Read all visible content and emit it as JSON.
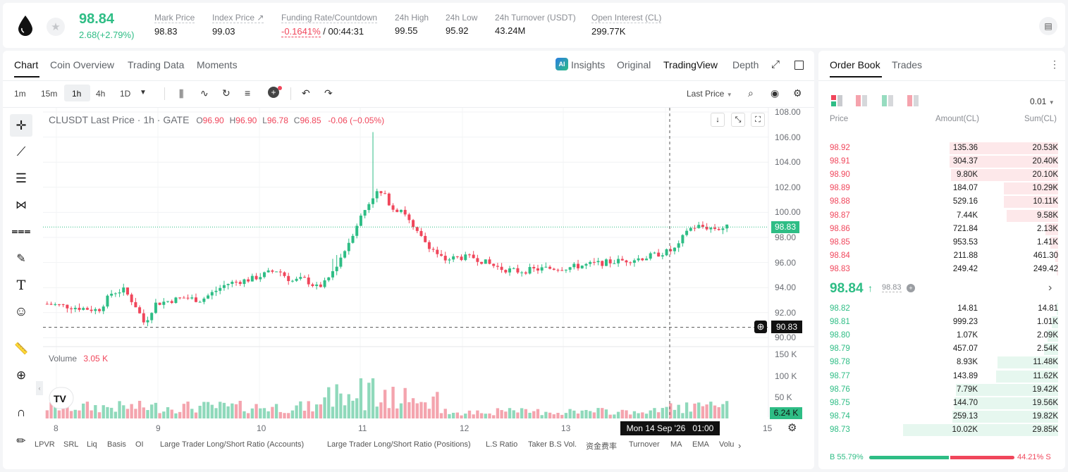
{
  "ticker": {
    "last_price": "98.84",
    "change": "2.68(+2.79%)",
    "stats": [
      {
        "label": "Mark Price",
        "value": "98.83"
      },
      {
        "label": "Index Price ↗",
        "value": "99.03"
      },
      {
        "label": "Funding Rate/Countdown",
        "value": "-0.1641%",
        "value2": " / 00:44:31"
      },
      {
        "label": "24h High",
        "value": "99.55"
      },
      {
        "label": "24h Low",
        "value": "95.92"
      },
      {
        "label": "24h Turnover (USDT)",
        "value": "43.24M"
      },
      {
        "label": "Open Interest (CL)",
        "value": "299.77K"
      }
    ]
  },
  "chart_tabs": [
    "Chart",
    "Coin Overview",
    "Trading Data",
    "Moments"
  ],
  "view_tabs": [
    "Insights",
    "Original",
    "TradingView",
    "Depth"
  ],
  "timeframes": [
    "1m",
    "15m",
    "1h",
    "4h",
    "1D"
  ],
  "price_source": "Last Price",
  "legend": {
    "symbol": "CLUSDT Last Price · 1h · GATE",
    "o_label": "O",
    "o": "96.90",
    "h_label": "H",
    "h": "96.90",
    "l_label": "L",
    "l": "96.78",
    "c_label": "C",
    "c": "96.85",
    "chg": "-0.06 (−0.05%)"
  },
  "volume_legend": {
    "label": "Volume",
    "value": "3.05 K"
  },
  "price_axis": [
    "108.00",
    "106.00",
    "104.00",
    "102.00",
    "100.00",
    "98.00",
    "96.00",
    "94.00",
    "92.00",
    "90.00"
  ],
  "volume_axis": [
    "150 K",
    "100 K",
    "50 K"
  ],
  "last_price_tag": "98.83",
  "cursor_price_tag": "90.83",
  "volume_tag": "6.24 K",
  "time_axis": [
    "8",
    "9",
    "10",
    "11",
    "12",
    "13",
    "15"
  ],
  "cursor_time": "Mon 14 Sep '26   01:00",
  "indicators": [
    "LPVR",
    "SRL",
    "Liq",
    "Basis",
    "OI",
    "Large Trader Long/Short Ratio (Accounts)",
    "Large Trader Long/Short Ratio (Positions)",
    "L.S Ratio",
    "Taker B.S Vol.",
    "资金费率",
    "Turnover",
    "MA",
    "EMA",
    "Volu"
  ],
  "orderbook": {
    "tabs": [
      "Order Book",
      "Trades"
    ],
    "precision": "0.01",
    "headers": [
      "Price",
      "Amount(CL)",
      "Sum(CL)"
    ],
    "asks": [
      {
        "price": "98.92",
        "amount": "135.36",
        "sum": "20.53K",
        "depth": 0.7
      },
      {
        "price": "98.91",
        "amount": "304.37",
        "sum": "20.40K",
        "depth": 0.7
      },
      {
        "price": "98.90",
        "amount": "9.80K",
        "sum": "20.10K",
        "depth": 0.69
      },
      {
        "price": "98.89",
        "amount": "184.07",
        "sum": "10.29K",
        "depth": 0.35
      },
      {
        "price": "98.88",
        "amount": "529.16",
        "sum": "10.11K",
        "depth": 0.35
      },
      {
        "price": "98.87",
        "amount": "7.44K",
        "sum": "9.58K",
        "depth": 0.33
      },
      {
        "price": "98.86",
        "amount": "721.84",
        "sum": "2.13K",
        "depth": 0.08
      },
      {
        "price": "98.85",
        "amount": "953.53",
        "sum": "1.41K",
        "depth": 0.05
      },
      {
        "price": "98.84",
        "amount": "211.88",
        "sum": "461.30",
        "depth": 0.02
      },
      {
        "price": "98.83",
        "amount": "249.42",
        "sum": "249.42",
        "depth": 0.01
      }
    ],
    "mid_price": "98.84",
    "mid_arrow": "↑",
    "mark_price": "98.83",
    "bids": [
      {
        "price": "98.82",
        "amount": "14.81",
        "sum": "14.81",
        "depth": 0.01
      },
      {
        "price": "98.81",
        "amount": "999.23",
        "sum": "1.01K",
        "depth": 0.04
      },
      {
        "price": "98.80",
        "amount": "1.07K",
        "sum": "2.09K",
        "depth": 0.07
      },
      {
        "price": "98.79",
        "amount": "457.07",
        "sum": "2.54K",
        "depth": 0.09
      },
      {
        "price": "98.78",
        "amount": "8.93K",
        "sum": "11.48K",
        "depth": 0.39
      },
      {
        "price": "98.77",
        "amount": "143.89",
        "sum": "11.62K",
        "depth": 0.4
      },
      {
        "price": "98.76",
        "amount": "7.79K",
        "sum": "19.42K",
        "depth": 0.66
      },
      {
        "price": "98.75",
        "amount": "144.70",
        "sum": "19.56K",
        "depth": 0.67
      },
      {
        "price": "98.74",
        "amount": "259.13",
        "sum": "19.82K",
        "depth": 0.68
      },
      {
        "price": "98.73",
        "amount": "10.02K",
        "sum": "29.85K",
        "depth": 1.0
      }
    ],
    "buy_ratio": "B 55.79%",
    "sell_ratio": "44.21% S",
    "buy_fraction": 0.5579
  },
  "colors": {
    "up": "#2ebd85",
    "down": "#f0465b"
  }
}
